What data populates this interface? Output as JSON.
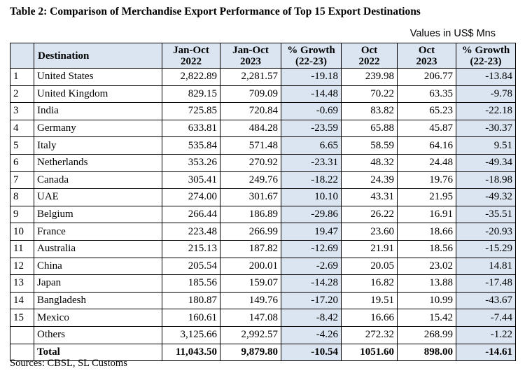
{
  "title": "Table 2: Comparison of Merchandise Export Performance of Top 15 Export Destinations",
  "units": "Values in US$ Mns",
  "headers": {
    "destination": "Destination",
    "janoct22": [
      "Jan-Oct",
      "2022"
    ],
    "janoct23": [
      "Jan-Oct",
      "2023"
    ],
    "growth1": [
      "% Growth",
      "(22-23)"
    ],
    "oct22": [
      "Oct",
      "2022"
    ],
    "oct23": [
      "Oct",
      "2023"
    ],
    "growth2": [
      "% Growth",
      "(22-23)"
    ]
  },
  "rows": [
    [
      "1",
      "United States",
      "2,822.89",
      "2,281.57",
      "-19.18",
      "239.98",
      "206.77",
      "-13.84"
    ],
    [
      "2",
      "United Kingdom",
      "829.15",
      "709.09",
      "-14.48",
      "70.22",
      "63.35",
      "-9.78"
    ],
    [
      "3",
      "India",
      "725.85",
      "720.84",
      "-0.69",
      "83.82",
      "65.23",
      "-22.18"
    ],
    [
      "4",
      "Germany",
      "633.81",
      "484.28",
      "-23.59",
      "65.88",
      "45.87",
      "-30.37"
    ],
    [
      "5",
      "Italy",
      "535.84",
      "571.48",
      "6.65",
      "58.59",
      "64.16",
      "9.51"
    ],
    [
      "6",
      "Netherlands",
      "353.26",
      "270.92",
      "-23.31",
      "48.32",
      "24.48",
      "-49.34"
    ],
    [
      "7",
      "Canada",
      "305.41",
      "249.76",
      "-18.22",
      "24.39",
      "19.76",
      "-18.98"
    ],
    [
      "8",
      "UAE",
      "274.00",
      "301.67",
      "10.10",
      "43.31",
      "21.95",
      "-49.32"
    ],
    [
      "9",
      "Belgium",
      "266.44",
      "186.89",
      "-29.86",
      "26.22",
      "16.91",
      "-35.51"
    ],
    [
      "10",
      "France",
      "223.48",
      "266.99",
      "19.47",
      "23.60",
      "18.66",
      "-20.93"
    ],
    [
      "11",
      "Australia",
      "215.13",
      "187.82",
      "-12.69",
      "21.91",
      "18.56",
      "-15.29"
    ],
    [
      "12",
      "China",
      "205.54",
      "200.01",
      "-2.69",
      "20.05",
      "23.02",
      "14.81"
    ],
    [
      "13",
      "Japan",
      "185.56",
      "159.07",
      "-14.28",
      "16.82",
      "13.88",
      "-17.48"
    ],
    [
      "14",
      "Bangladesh",
      "180.87",
      "149.76",
      "-17.20",
      "19.51",
      "10.99",
      "-43.67"
    ],
    [
      "15",
      "Mexico",
      "160.61",
      "147.08",
      "-8.42",
      "16.66",
      "15.42",
      "-7.44"
    ],
    [
      "",
      "Others",
      "3,125.66",
      "2,992.57",
      "-4.26",
      "272.32",
      "268.99",
      "-1.22"
    ]
  ],
  "total": [
    "",
    "Total",
    "11,043.50",
    "9,879.80",
    "-10.54",
    "1051.60",
    "898.00",
    "-14.61"
  ],
  "source": "Sources: CBSL, SL Customs",
  "colors": {
    "header_bg": "#dbe5f1",
    "growth_bg": "#dbe5f1",
    "border": "#000000"
  }
}
